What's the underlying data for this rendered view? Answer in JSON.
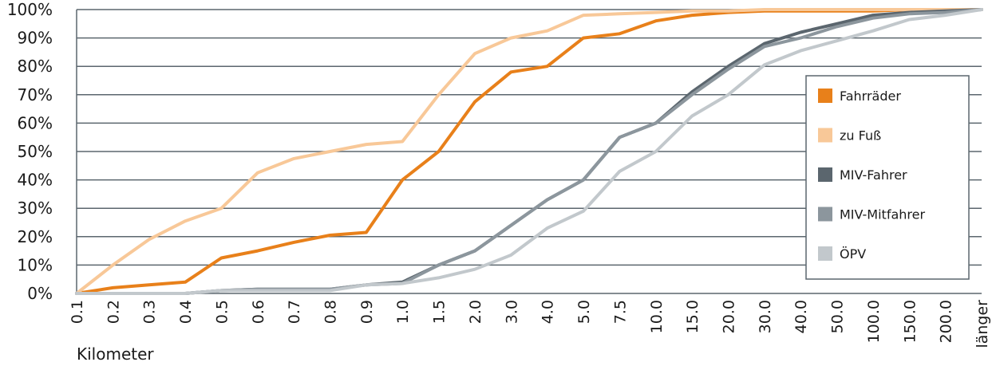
{
  "chart_data": {
    "type": "line",
    "title": "",
    "xlabel": "Kilometer",
    "ylabel": "",
    "ylim": [
      0,
      100
    ],
    "y_ticks": [
      "0%",
      "10%",
      "20%",
      "30%",
      "40%",
      "50%",
      "60%",
      "70%",
      "80%",
      "90%",
      "100%"
    ],
    "categories": [
      "0.1",
      "0.2",
      "0.3",
      "0.4",
      "0.5",
      "0.6",
      "0.7",
      "0.8",
      "0.9",
      "1.0",
      "1.5",
      "2.0",
      "3.0",
      "4.0",
      "5.0",
      "7.5",
      "10.0",
      "15.0",
      "20.0",
      "30.0",
      "40.0",
      "50.0",
      "100.0",
      "150.0",
      "200.0",
      "länger"
    ],
    "grid": true,
    "legend_position": "right",
    "series": [
      {
        "name": "Fahrräder",
        "color": "#e8801a",
        "values": [
          0,
          2,
          3,
          4,
          12.5,
          15,
          18,
          20.5,
          21.5,
          40,
          50,
          67.5,
          78,
          80,
          90,
          91.5,
          96,
          98,
          99,
          99.5,
          99.5,
          99.5,
          99.5,
          100,
          100,
          100
        ]
      },
      {
        "name": "zu Fuß",
        "color": "#f8c898",
        "values": [
          0,
          10,
          19,
          25.5,
          30,
          42.5,
          47.5,
          50,
          52.5,
          53.5,
          70,
          84.5,
          90,
          92.5,
          98,
          98.5,
          99,
          99.5,
          99.5,
          100,
          100,
          100,
          100,
          100,
          100,
          100
        ]
      },
      {
        "name": "MIV-Fahrer",
        "color": "#5b666e",
        "values": [
          0,
          0,
          0,
          0,
          1,
          1.5,
          1.5,
          1.5,
          3,
          4,
          10,
          15,
          24,
          33,
          40,
          55,
          60,
          71,
          80,
          88,
          92,
          95,
          98,
          99,
          99.5,
          100
        ]
      },
      {
        "name": "MIV-Mitfahrer",
        "color": "#8c969d",
        "values": [
          0,
          0,
          0,
          0,
          1,
          1.5,
          1.5,
          1.5,
          3,
          3.5,
          10,
          15,
          24,
          33,
          40,
          55,
          60,
          70,
          79,
          87,
          90,
          94,
          97,
          98.5,
          99,
          100
        ]
      },
      {
        "name": "ÖPV",
        "color": "#c2c8cc",
        "values": [
          0,
          0,
          0,
          0,
          1,
          1,
          1,
          1,
          3,
          3.5,
          5.5,
          8.5,
          13.5,
          23,
          29,
          43,
          50,
          62.5,
          70,
          80.5,
          85.5,
          89,
          92.5,
          96.5,
          98,
          100
        ]
      }
    ]
  }
}
